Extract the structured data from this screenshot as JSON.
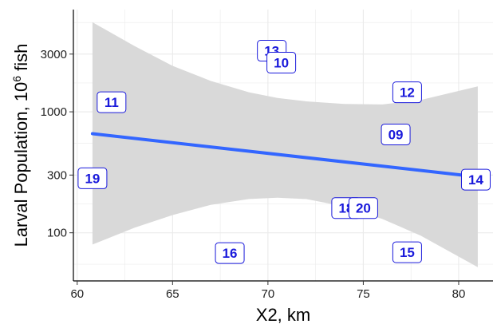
{
  "chart_data": {
    "type": "scatter",
    "title": "",
    "xlabel": "X2, km",
    "ylabel": "Larval Population, 10",
    "ylabel_superscript": "6",
    "ylabel_suffix": " fish",
    "xlim": [
      59.8,
      81.8
    ],
    "ylim": [
      40,
      7000
    ],
    "y_scale": "log10",
    "x_ticks": [
      60,
      65,
      70,
      75,
      80
    ],
    "x_tick_labels": [
      "60",
      "65",
      "70",
      "75",
      "80"
    ],
    "y_ticks": [
      100,
      300,
      1000,
      3000
    ],
    "y_tick_labels": [
      "100",
      "300",
      "1000",
      "3000"
    ],
    "grid": true,
    "points": [
      {
        "label": "13",
        "x": 70.2,
        "y": 3200
      },
      {
        "label": "10",
        "x": 70.7,
        "y": 2550
      },
      {
        "label": "12",
        "x": 77.3,
        "y": 1450
      },
      {
        "label": "11",
        "x": 61.8,
        "y": 1200
      },
      {
        "label": "09",
        "x": 76.7,
        "y": 650
      },
      {
        "label": "19",
        "x": 60.8,
        "y": 282
      },
      {
        "label": "14",
        "x": 80.9,
        "y": 275
      },
      {
        "label": "18",
        "x": 74.1,
        "y": 160
      },
      {
        "label": "20",
        "x": 75.0,
        "y": 160
      },
      {
        "label": "16",
        "x": 68.0,
        "y": 68
      },
      {
        "label": "15",
        "x": 77.3,
        "y": 69
      }
    ],
    "trend_line": {
      "x": [
        60.8,
        81.0
      ],
      "y": [
        660,
        290
      ]
    },
    "confidence_band": {
      "x": [
        60.8,
        63,
        65,
        67,
        69,
        70.5,
        72,
        74,
        76,
        78,
        81.0
      ],
      "upper": [
        5500,
        3500,
        2400,
        1800,
        1450,
        1300,
        1220,
        1160,
        1150,
        1250,
        1620
      ],
      "lower": [
        80,
        110,
        140,
        170,
        190,
        195,
        190,
        165,
        130,
        95,
        52
      ]
    },
    "colors": {
      "line": "#3366ff",
      "band": "#d9d9d9",
      "label_text": "#1a1adb",
      "grid": "#ebebeb"
    }
  }
}
